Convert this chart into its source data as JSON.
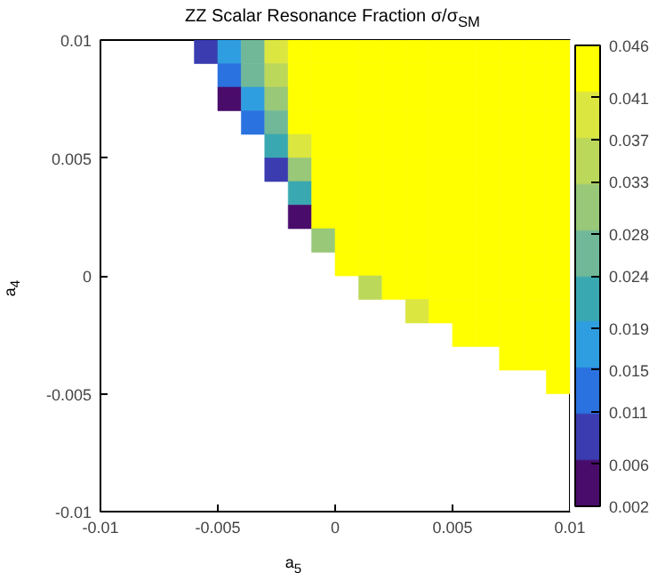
{
  "chart_data": {
    "type": "scatter",
    "title": "ZZ Scalar Resonance Fraction σ/σ$_{SM}$",
    "xlabel": "a$_{5}$",
    "ylabel": "a$_{4}$",
    "marker": "square",
    "grid": false,
    "xlim": [
      -0.01,
      0.01
    ],
    "ylim": [
      -0.01,
      0.01
    ],
    "xticks": [
      -0.01,
      -0.005,
      0,
      0.005,
      0.01
    ],
    "yticks": [
      -0.01,
      -0.005,
      0,
      0.005,
      0.01
    ],
    "clim": [
      0.002,
      0.046
    ],
    "cticks": [
      0.002,
      0.006,
      0.011,
      0.015,
      0.019,
      0.024,
      0.028,
      0.033,
      0.037,
      0.041,
      0.046
    ],
    "series": [
      {
        "x": [
          -0.0055,
          -0.0045,
          -0.0035,
          -0.0025,
          -0.0015,
          -0.0005,
          0.0005,
          0.0015,
          0.0025,
          0.0035,
          0.0045,
          0.0055,
          0.0065,
          0.0075,
          0.0085,
          0.0095
        ],
        "values": [
          0.0095,
          0.0095,
          0.0095,
          0.0095,
          0.0095,
          0.0095,
          0.0095,
          0.0095,
          0.0095,
          0.0095,
          0.0095,
          0.0095,
          0.0095,
          0.0095,
          0.0095,
          0.0095
        ],
        "cvalues": [
          0.007,
          0.018,
          0.028,
          0.039,
          0.046,
          0.046,
          0.046,
          0.046,
          0.046,
          0.046,
          0.046,
          0.046,
          0.046,
          0.046,
          0.046,
          0.046
        ],
        "colors": [
          "#3a3cb0",
          "#2f9ee0",
          "#70b898",
          "#dce640",
          "#ffff00",
          "#ffff00",
          "#ffff00",
          "#ffff00",
          "#ffff00",
          "#ffff00",
          "#ffff00",
          "#ffff00",
          "#ffff00",
          "#ffff00",
          "#ffff00",
          "#ffff00"
        ]
      },
      {
        "x": [
          -0.0045,
          -0.0035,
          -0.0025,
          -0.0015,
          -0.0005,
          0.0005,
          0.0015,
          0.0025,
          0.0035,
          0.0045,
          0.0055,
          0.0065,
          0.0075,
          0.0085,
          0.0095
        ],
        "values": [
          0.0085,
          0.0085,
          0.0085,
          0.0085,
          0.0085,
          0.0085,
          0.0085,
          0.0085,
          0.0085,
          0.0085,
          0.0085,
          0.0085,
          0.0085,
          0.0085,
          0.0085
        ],
        "cvalues": [
          0.012,
          0.024,
          0.036,
          0.046,
          0.046,
          0.046,
          0.046,
          0.046,
          0.046,
          0.046,
          0.046,
          0.046,
          0.046,
          0.046,
          0.046
        ],
        "colors": [
          "#2a72e0",
          "#70b898",
          "#bcd85a",
          "#ffff00",
          "#ffff00",
          "#ffff00",
          "#ffff00",
          "#ffff00",
          "#ffff00",
          "#ffff00",
          "#ffff00",
          "#ffff00",
          "#ffff00",
          "#ffff00",
          "#ffff00"
        ]
      },
      {
        "x": [
          -0.0045,
          -0.0035,
          -0.0025,
          -0.0015,
          -0.0005,
          0.0005,
          0.0015,
          0.0025,
          0.0035,
          0.0045,
          0.0055,
          0.0065,
          0.0075,
          0.0085,
          0.0095
        ],
        "values": [
          0.0075,
          0.0075,
          0.0075,
          0.0075,
          0.0075,
          0.0075,
          0.0075,
          0.0075,
          0.0075,
          0.0075,
          0.0075,
          0.0075,
          0.0075,
          0.0075,
          0.0075
        ],
        "cvalues": [
          0.005,
          0.018,
          0.032,
          0.045,
          0.046,
          0.046,
          0.046,
          0.046,
          0.046,
          0.046,
          0.046,
          0.046,
          0.046,
          0.046,
          0.046
        ],
        "colors": [
          "#4a0c6b",
          "#2f9ee0",
          "#98c878",
          "#ffff00",
          "#ffff00",
          "#ffff00",
          "#ffff00",
          "#ffff00",
          "#ffff00",
          "#ffff00",
          "#ffff00",
          "#ffff00",
          "#ffff00",
          "#ffff00",
          "#ffff00"
        ]
      },
      {
        "x": [
          -0.0035,
          -0.0025,
          -0.0015,
          -0.0005,
          0.0005,
          0.0015,
          0.0025,
          0.0035,
          0.0045,
          0.0055,
          0.0065,
          0.0075,
          0.0085,
          0.0095
        ],
        "values": [
          0.0065,
          0.0065,
          0.0065,
          0.0065,
          0.0065,
          0.0065,
          0.0065,
          0.0065,
          0.0065,
          0.0065,
          0.0065,
          0.0065,
          0.0065,
          0.0065
        ],
        "cvalues": [
          0.011,
          0.027,
          0.042,
          0.046,
          0.046,
          0.046,
          0.046,
          0.046,
          0.046,
          0.046,
          0.046,
          0.046,
          0.046,
          0.046
        ],
        "colors": [
          "#2a72e0",
          "#70b898",
          "#ffff00",
          "#ffff00",
          "#ffff00",
          "#ffff00",
          "#ffff00",
          "#ffff00",
          "#ffff00",
          "#ffff00",
          "#ffff00",
          "#ffff00",
          "#ffff00",
          "#ffff00"
        ]
      },
      {
        "x": [
          -0.0025,
          -0.0015,
          -0.0005,
          0.0005,
          0.0015,
          0.0025,
          0.0035,
          0.0045,
          0.0055,
          0.0065,
          0.0075,
          0.0085,
          0.0095
        ],
        "values": [
          0.0055,
          0.0055,
          0.0055,
          0.0055,
          0.0055,
          0.0055,
          0.0055,
          0.0055,
          0.0055,
          0.0055,
          0.0055,
          0.0055,
          0.0055
        ],
        "cvalues": [
          0.02,
          0.038,
          0.046,
          0.046,
          0.046,
          0.046,
          0.046,
          0.046,
          0.046,
          0.046,
          0.046,
          0.046,
          0.046
        ],
        "colors": [
          "#3aa8b0",
          "#dce640",
          "#ffff00",
          "#ffff00",
          "#ffff00",
          "#ffff00",
          "#ffff00",
          "#ffff00",
          "#ffff00",
          "#ffff00",
          "#ffff00",
          "#ffff00",
          "#ffff00"
        ]
      },
      {
        "x": [
          -0.0025,
          -0.0015,
          -0.0005,
          0.0005,
          0.0015,
          0.0025,
          0.0035,
          0.0045,
          0.0055,
          0.0065,
          0.0075,
          0.0085,
          0.0095
        ],
        "values": [
          0.0045,
          0.0045,
          0.0045,
          0.0045,
          0.0045,
          0.0045,
          0.0045,
          0.0045,
          0.0045,
          0.0045,
          0.0045,
          0.0045,
          0.0045
        ],
        "cvalues": [
          0.009,
          0.032,
          0.046,
          0.046,
          0.046,
          0.046,
          0.046,
          0.046,
          0.046,
          0.046,
          0.046,
          0.046,
          0.046
        ],
        "colors": [
          "#3a3cb0",
          "#98c878",
          "#ffff00",
          "#ffff00",
          "#ffff00",
          "#ffff00",
          "#ffff00",
          "#ffff00",
          "#ffff00",
          "#ffff00",
          "#ffff00",
          "#ffff00",
          "#ffff00"
        ]
      },
      {
        "x": [
          -0.0015,
          -0.0005,
          0.0005,
          0.0015,
          0.0025,
          0.0035,
          0.0045,
          0.0055,
          0.0065,
          0.0075,
          0.0085,
          0.0095
        ],
        "values": [
          0.0035,
          0.0035,
          0.0035,
          0.0035,
          0.0035,
          0.0035,
          0.0035,
          0.0035,
          0.0035,
          0.0035,
          0.0035,
          0.0035
        ],
        "cvalues": [
          0.022,
          0.046,
          0.046,
          0.046,
          0.046,
          0.046,
          0.046,
          0.046,
          0.046,
          0.046,
          0.046,
          0.046
        ],
        "colors": [
          "#3aa8b0",
          "#ffff00",
          "#ffff00",
          "#ffff00",
          "#ffff00",
          "#ffff00",
          "#ffff00",
          "#ffff00",
          "#ffff00",
          "#ffff00",
          "#ffff00",
          "#ffff00"
        ]
      },
      {
        "x": [
          -0.0015,
          -0.0005,
          0.0005,
          0.0015,
          0.0025,
          0.0035,
          0.0045,
          0.0055,
          0.0065,
          0.0075,
          0.0085,
          0.0095
        ],
        "values": [
          0.0025,
          0.0025,
          0.0025,
          0.0025,
          0.0025,
          0.0025,
          0.0025,
          0.0025,
          0.0025,
          0.0025,
          0.0025,
          0.0025
        ],
        "cvalues": [
          0.005,
          0.045,
          0.046,
          0.046,
          0.046,
          0.046,
          0.046,
          0.046,
          0.046,
          0.046,
          0.046,
          0.046
        ],
        "colors": [
          "#4a0c6b",
          "#ffff00",
          "#ffff00",
          "#ffff00",
          "#ffff00",
          "#ffff00",
          "#ffff00",
          "#ffff00",
          "#ffff00",
          "#ffff00",
          "#ffff00",
          "#ffff00"
        ]
      },
      {
        "x": [
          -0.0005,
          0.0005,
          0.0015,
          0.0025,
          0.0035,
          0.0045,
          0.0055,
          0.0065,
          0.0075,
          0.0085,
          0.0095
        ],
        "values": [
          0.0015,
          0.0015,
          0.0015,
          0.0015,
          0.0015,
          0.0015,
          0.0015,
          0.0015,
          0.0015,
          0.0015,
          0.0015
        ],
        "cvalues": [
          0.032,
          0.046,
          0.046,
          0.046,
          0.046,
          0.046,
          0.046,
          0.046,
          0.046,
          0.046,
          0.046
        ],
        "colors": [
          "#98c878",
          "#ffff00",
          "#ffff00",
          "#ffff00",
          "#ffff00",
          "#ffff00",
          "#ffff00",
          "#ffff00",
          "#ffff00",
          "#ffff00",
          "#ffff00"
        ]
      },
      {
        "x": [
          0.0005,
          0.0015,
          0.0025,
          0.0035,
          0.0045,
          0.0055,
          0.0065,
          0.0075,
          0.0085,
          0.0095
        ],
        "values": [
          0.0005,
          0.0005,
          0.0005,
          0.0005,
          0.0005,
          0.0005,
          0.0005,
          0.0005,
          0.0005,
          0.0005
        ],
        "cvalues": [
          0.046,
          0.046,
          0.046,
          0.046,
          0.046,
          0.046,
          0.046,
          0.046,
          0.046,
          0.046
        ],
        "colors": [
          "#ffff00",
          "#ffff00",
          "#ffff00",
          "#ffff00",
          "#ffff00",
          "#ffff00",
          "#ffff00",
          "#ffff00",
          "#ffff00",
          "#ffff00"
        ]
      },
      {
        "x": [
          0.0015,
          0.0025,
          0.0035,
          0.0045,
          0.0055,
          0.0065,
          0.0075,
          0.0085,
          0.0095
        ],
        "values": [
          -0.0005,
          -0.0005,
          -0.0005,
          -0.0005,
          -0.0005,
          -0.0005,
          -0.0005,
          -0.0005,
          -0.0005
        ],
        "cvalues": [
          0.036,
          0.046,
          0.046,
          0.046,
          0.046,
          0.046,
          0.046,
          0.046,
          0.046
        ],
        "colors": [
          "#bcd85a",
          "#ffff00",
          "#ffff00",
          "#ffff00",
          "#ffff00",
          "#ffff00",
          "#ffff00",
          "#ffff00",
          "#ffff00"
        ]
      },
      {
        "x": [
          0.0035,
          0.0045,
          0.0055,
          0.0065,
          0.0075,
          0.0085,
          0.0095
        ],
        "values": [
          -0.0015,
          -0.0015,
          -0.0015,
          -0.0015,
          -0.0015,
          -0.0015,
          -0.0015
        ],
        "cvalues": [
          0.04,
          0.046,
          0.046,
          0.046,
          0.046,
          0.046,
          0.046
        ],
        "colors": [
          "#dce640",
          "#ffff00",
          "#ffff00",
          "#ffff00",
          "#ffff00",
          "#ffff00",
          "#ffff00"
        ]
      },
      {
        "x": [
          0.0055,
          0.0065,
          0.0075,
          0.0085,
          0.0095
        ],
        "values": [
          -0.0025,
          -0.0025,
          -0.0025,
          -0.0025,
          -0.0025
        ],
        "cvalues": [
          0.046,
          0.046,
          0.046,
          0.046,
          0.046
        ],
        "colors": [
          "#ffff00",
          "#ffff00",
          "#ffff00",
          "#ffff00",
          "#ffff00"
        ]
      },
      {
        "x": [
          0.0075,
          0.0085,
          0.0095
        ],
        "values": [
          -0.0035,
          -0.0035,
          -0.0035
        ],
        "cvalues": [
          0.046,
          0.046,
          0.046
        ],
        "colors": [
          "#ffff00",
          "#ffff00",
          "#ffff00"
        ]
      },
      {
        "x": [
          0.0095
        ],
        "values": [
          -0.0045
        ],
        "cvalues": [
          0.046
        ],
        "colors": [
          "#ffff00"
        ]
      }
    ]
  }
}
